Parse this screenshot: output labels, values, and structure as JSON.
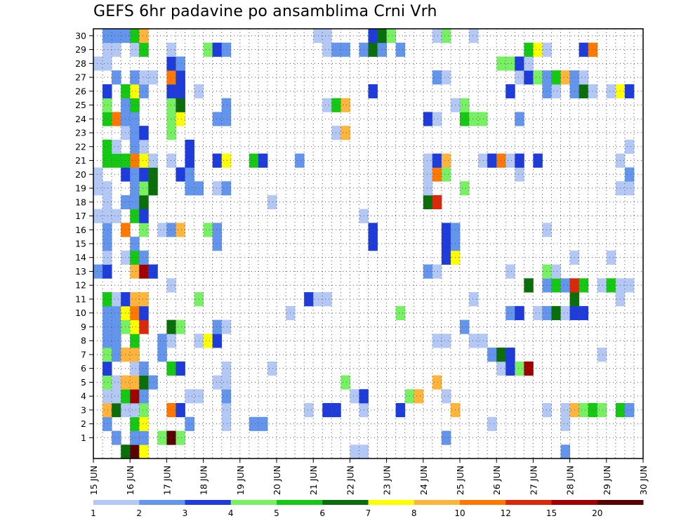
{
  "chart_data": {
    "type": "heatmap",
    "title": "GEFS 6hr padavine po ansamblima Crni Vrh",
    "members": [
      1,
      30
    ],
    "x_tick_labels": [
      "15 JUN",
      "16 JUN",
      "17 JUN",
      "18 JUN",
      "19 JUN",
      "20 JUN",
      "21 JUN",
      "22 JUN",
      "23 JUN",
      "24 JUN",
      "25 JUN",
      "26 JUN",
      "27 JUN",
      "28 JUN",
      "29 JUN",
      "30 JUN"
    ],
    "y_tick_labels": [
      "1",
      "2",
      "3",
      "4",
      "5",
      "6",
      "7",
      "8",
      "9",
      "10",
      "11",
      "12",
      "13",
      "14",
      "15",
      "16",
      "17",
      "18",
      "19",
      "20",
      "21",
      "22",
      "23",
      "24",
      "25",
      "26",
      "27",
      "28",
      "29",
      "30"
    ],
    "grid": true,
    "colorbar": {
      "position": "bottom",
      "colors": [
        "#b4c8f5",
        "#6495ed",
        "#1e3cdc",
        "#78f064",
        "#14c814",
        "#0a6e0a",
        "#ffff00",
        "#ffb43c",
        "#ff7800",
        "#dc280a",
        "#a00000",
        "#5a0000"
      ],
      "labels": [
        "1",
        "2",
        "3",
        "4",
        "5",
        "6",
        "7",
        "8",
        "10",
        "12",
        "15",
        "20"
      ]
    },
    "cells_by_member": {
      "30": "1:2,2:2,3:2,4:5,5:8,24:1,25:1,30:3,31:6,32:4,37:1,38:4,41:1",
      "29": "1:1,2:1,4:1,5:5,8:1,12:4,13:3,14:2,25:1,26:2,27:2,29:2,30:6,31:2,33:2,47:5,48:7,49:1,53:3,54:9",
      "28": "0:1,1:1,8:3,9:2,44:4,45:4,46:3,47:1",
      "27": "2:2,4:2,5:1,6:1,8:9,9:3,37:2,38:1,46:1,47:3,48:4,49:2,50:5,51:8,52:2,53:1",
      "26": "1:3,3:5,4:7,5:2,8:3,9:3,11:1,30:3,45:3,49:2,50:1,52:2,53:6,54:1,56:1,57:7,58:3",
      "25": "1:4,3:2,4:5,8:4,9:6,14:2,25:1,26:5,27:8,39:1,40:4",
      "24": "1:5,2:9,3:2,4:2,8:4,9:7,13:2,14:2,36:3,37:1,40:5,41:4,42:4,46:2",
      "23": "3:1,4:2,5:3,8:4,26:1,27:8",
      "22": "1:5,2:1,4:2,5:1,10:3,58:1",
      "21": "1:5,2:5,3:5,4:9,5:7,6:1,8:1,10:3,13:3,14:7,17:5,18:3,22:2,36:1,37:3,38:8,42:1,43:3,44:9,45:1,46:3,48:3,57:1",
      "20": "0:1,3:3,4:2,5:3,6:6,9:3,10:2,36:1,37:9,38:4,46:1,58:2",
      "19": "0:1,1:1,4:2,5:4,6:6,10:2,11:2,13:1,14:2,36:1,40:4,57:1,58:1",
      "18": "1:1,3:2,4:2,5:6,19:1,36:6,37:10",
      "17": "0:1,1:1,2:1,4:5,5:3,29:1",
      "16": "1:2,3:9,5:4,7:1,8:2,9:8,12:4,13:2,30:3,38:3,39:2,49:1",
      "15": "1:2,4:2,13:2,30:3,38:3,39:2",
      "14": "1:1,3:1,4:5,5:2,38:3,39:7,52:1,56:1",
      "13": "0:2,1:3,4:8,5:11,6:3,36:2,37:1,45:1,49:4,50:1",
      "12": "8:1,47:6,49:2,50:5,51:2,52:10,53:5,55:1,56:5,57:1,58:1",
      "11": "1:5,2:1,3:3,4:8,5:8,11:4,23:3,24:1,25:1,41:1,52:6,57:1",
      "10": "1:2,2:2,3:7,4:9,5:3,21:1,33:4,45:2,46:3,48:1,49:2,50:6,51:1,52:3,53:3",
      "9": "1:2,2:2,3:4,4:7,5:10,8:6,9:4,13:2,14:1,40:2",
      "8": "1:2,2:2,4:5,7:2,8:1,11:1,12:7,13:3,37:1,38:1,41:1,42:1",
      "7": "1:4,2:2,3:8,4:8,7:2,43:2,44:6,45:3,55:1",
      "6": "1:3,4:1,5:2,8:5,9:3,14:1,19:1,44:1,45:3,46:4,47:11",
      "5": "1:4,2:1,3:8,4:8,5:6,6:2,13:1,14:1,27:4,37:8",
      "4": "1:1,2:1,3:5,4:11,5:2,10:1,11:1,14:2,28:1,29:3,34:4,35:8,38:1",
      "3": "1:8,2:6,3:1,4:1,5:4,8:9,9:3,14:1,23:1,25:3,26:3,29:1,33:3,39:8,49:1,51:1,52:8,53:4,54:5,55:4,57:5,58:2",
      "2": "1:2,4:5,5:7,10:2,14:1,17:2,18:2,43:1,51:1",
      "1": "2:2,4:2,5:2,7:4,8:12,9:4,38:2",
      "0": "3:6,4:12,5:7,28:1,29:1,51:2"
    }
  }
}
